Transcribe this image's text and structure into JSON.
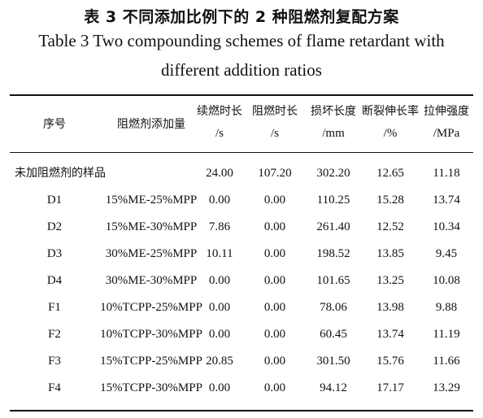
{
  "caption": {
    "cn": "表 3   不同添加比例下的 2 种阻燃剂复配方案",
    "en_line1": "Table 3   Two compounding schemes of flame retardant with",
    "en_line2": "different addition ratios"
  },
  "headers": {
    "id": "序号",
    "additive": "阻燃剂添加量",
    "afterflame": "续燃时长",
    "afterflame_unit": "/s",
    "afterglow": "阻燃时长",
    "afterglow_unit": "/s",
    "damage": "损坏长度",
    "damage_unit": "/mm",
    "elongation": "断裂伸长率",
    "elongation_unit": "/%",
    "strength": "拉伸强度",
    "strength_unit": "/MPa"
  },
  "rows": [
    {
      "id": "未加阻燃剂的样品",
      "additive": "",
      "afterflame": "24.00",
      "afterglow": "107.20",
      "damage": "302.20",
      "elongation": "12.65",
      "strength": "11.18"
    },
    {
      "id": "D1",
      "additive": "15%ME-25%MPP",
      "afterflame": "0.00",
      "afterglow": "0.00",
      "damage": "110.25",
      "elongation": "15.28",
      "strength": "13.74"
    },
    {
      "id": "D2",
      "additive": "15%ME-30%MPP",
      "afterflame": "7.86",
      "afterglow": "0.00",
      "damage": "261.40",
      "elongation": "12.52",
      "strength": "10.34"
    },
    {
      "id": "D3",
      "additive": "30%ME-25%MPP",
      "afterflame": "10.11",
      "afterglow": "0.00",
      "damage": "198.52",
      "elongation": "13.85",
      "strength": "9.45"
    },
    {
      "id": "D4",
      "additive": "30%ME-30%MPP",
      "afterflame": "0.00",
      "afterglow": "0.00",
      "damage": "101.65",
      "elongation": "13.25",
      "strength": "10.08"
    },
    {
      "id": "F1",
      "additive": "10%TCPP-25%MPP",
      "afterflame": "0.00",
      "afterglow": "0.00",
      "damage": "78.06",
      "elongation": "13.98",
      "strength": "9.88"
    },
    {
      "id": "F2",
      "additive": "10%TCPP-30%MPP",
      "afterflame": "0.00",
      "afterglow": "0.00",
      "damage": "60.45",
      "elongation": "13.74",
      "strength": "11.19"
    },
    {
      "id": "F3",
      "additive": "15%TCPP-25%MPP",
      "afterflame": "20.85",
      "afterglow": "0.00",
      "damage": "301.50",
      "elongation": "15.76",
      "strength": "11.66"
    },
    {
      "id": "F4",
      "additive": "15%TCPP-30%MPP",
      "afterflame": "0.00",
      "afterglow": "0.00",
      "damage": "94.12",
      "elongation": "17.17",
      "strength": "13.29"
    }
  ]
}
